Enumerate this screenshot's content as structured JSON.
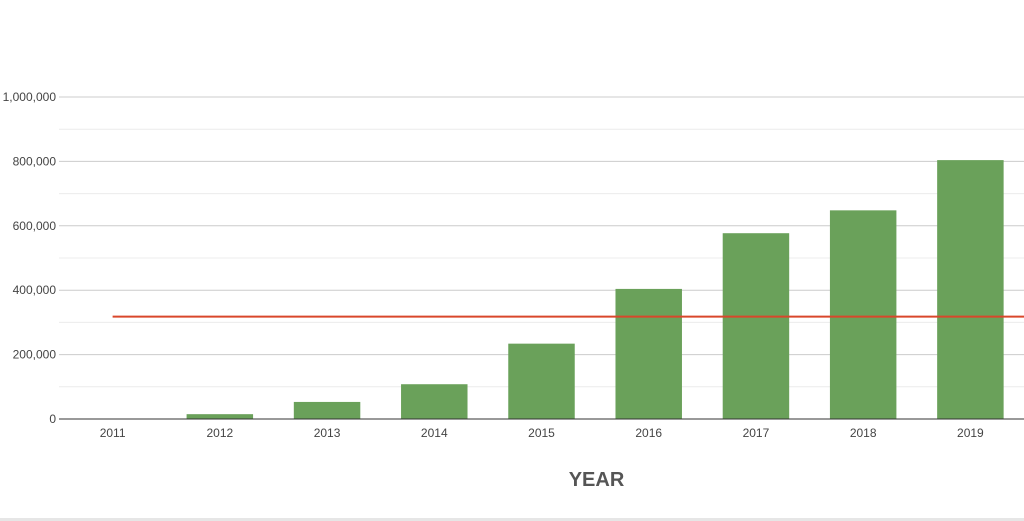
{
  "chart_data": {
    "type": "bar",
    "title": "",
    "xlabel": "YEAR",
    "ylabel": "",
    "categories": [
      "2011",
      "2012",
      "2013",
      "2014",
      "2015",
      "2016",
      "2017",
      "2018",
      "2019"
    ],
    "series": [
      {
        "values": [
          500,
          15000,
          53000,
          108000,
          234000,
          404000,
          577000,
          648000,
          804000
        ],
        "color": "#6aa15a"
      }
    ],
    "reference_line": {
      "value": 318000,
      "color": "#d9472b"
    },
    "ylim": [
      0,
      1000000
    ],
    "yticks": [
      0,
      200000,
      400000,
      600000,
      800000,
      1000000
    ],
    "ytick_labels": [
      "0",
      "200,000",
      "400,000",
      "600,000",
      "800,000",
      "1,000,000"
    ],
    "grid": true,
    "legend": "none"
  }
}
